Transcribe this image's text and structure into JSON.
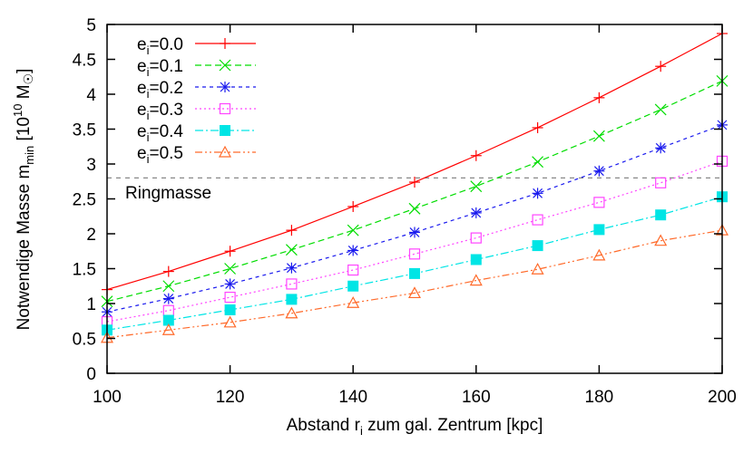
{
  "chart_data": {
    "type": "line",
    "xlabel": {
      "pre": "Abstand r",
      "sub": "i",
      "post": " zum gal. Zentrum [kpc]"
    },
    "ylabel": {
      "pre": "Notwendige Masse m",
      "sub": "min",
      "mid": " [10",
      "sup": "10",
      "post": " M",
      "sun": "☉",
      "end": "]"
    },
    "xlim": [
      100,
      200
    ],
    "ylim": [
      0,
      5
    ],
    "xticks": [
      "100",
      "120",
      "140",
      "160",
      "180",
      "200"
    ],
    "yticks": [
      "0",
      "0.5",
      "1",
      "1.5",
      "2",
      "2.5",
      "3",
      "3.5",
      "4",
      "4.5",
      "5"
    ],
    "grid": false,
    "legend_placement": "top-left",
    "x": [
      100,
      110,
      120,
      130,
      140,
      150,
      160,
      170,
      180,
      190,
      200
    ],
    "series": [
      {
        "name": "e_i=0.0",
        "label_base": "e",
        "label_sub": "i",
        "label_rest": "=0.0",
        "color": "#ff0000",
        "marker": "plus",
        "dash": "",
        "values": [
          1.2,
          1.46,
          1.75,
          2.05,
          2.39,
          2.74,
          3.12,
          3.52,
          3.95,
          4.4,
          4.87
        ]
      },
      {
        "name": "e_i=0.1",
        "label_base": "e",
        "label_sub": "i",
        "label_rest": "=0.1",
        "color": "#00dd00",
        "marker": "cross",
        "dash": "7,4",
        "values": [
          1.03,
          1.25,
          1.5,
          1.77,
          2.05,
          2.36,
          2.68,
          3.03,
          3.4,
          3.78,
          4.19
        ]
      },
      {
        "name": "e_i=0.2",
        "label_base": "e",
        "label_sub": "i",
        "label_rest": "=0.2",
        "color": "#1a1aee",
        "marker": "star",
        "dash": "4,4",
        "values": [
          0.88,
          1.07,
          1.28,
          1.51,
          1.76,
          2.02,
          2.3,
          2.58,
          2.9,
          3.23,
          3.56
        ]
      },
      {
        "name": "e_i=0.3",
        "label_base": "e",
        "label_sub": "i",
        "label_rest": "=0.3",
        "color": "#ff44ff",
        "marker": "square",
        "dash": "2,3",
        "values": [
          0.74,
          0.9,
          1.09,
          1.28,
          1.48,
          1.71,
          1.94,
          2.2,
          2.45,
          2.73,
          3.04
        ]
      },
      {
        "name": "e_i=0.4",
        "label_base": "e",
        "label_sub": "i",
        "label_rest": "=0.4",
        "color": "#00e5e5",
        "marker": "filled-square",
        "dash": "9,3,2,3",
        "values": [
          0.62,
          0.76,
          0.91,
          1.06,
          1.25,
          1.43,
          1.63,
          1.83,
          2.06,
          2.27,
          2.53
        ]
      },
      {
        "name": "e_i=0.5",
        "label_base": "e",
        "label_sub": "i",
        "label_rest": "=0.5",
        "color": "#ff6a2a",
        "marker": "triangle",
        "dash": "8,3,2,3,2,3",
        "values": [
          0.51,
          0.62,
          0.73,
          0.86,
          1.01,
          1.15,
          1.33,
          1.49,
          1.69,
          1.9,
          2.05
        ]
      }
    ],
    "reference_line": {
      "label": "Ringmasse",
      "value": 2.8,
      "color": "#888888"
    }
  }
}
